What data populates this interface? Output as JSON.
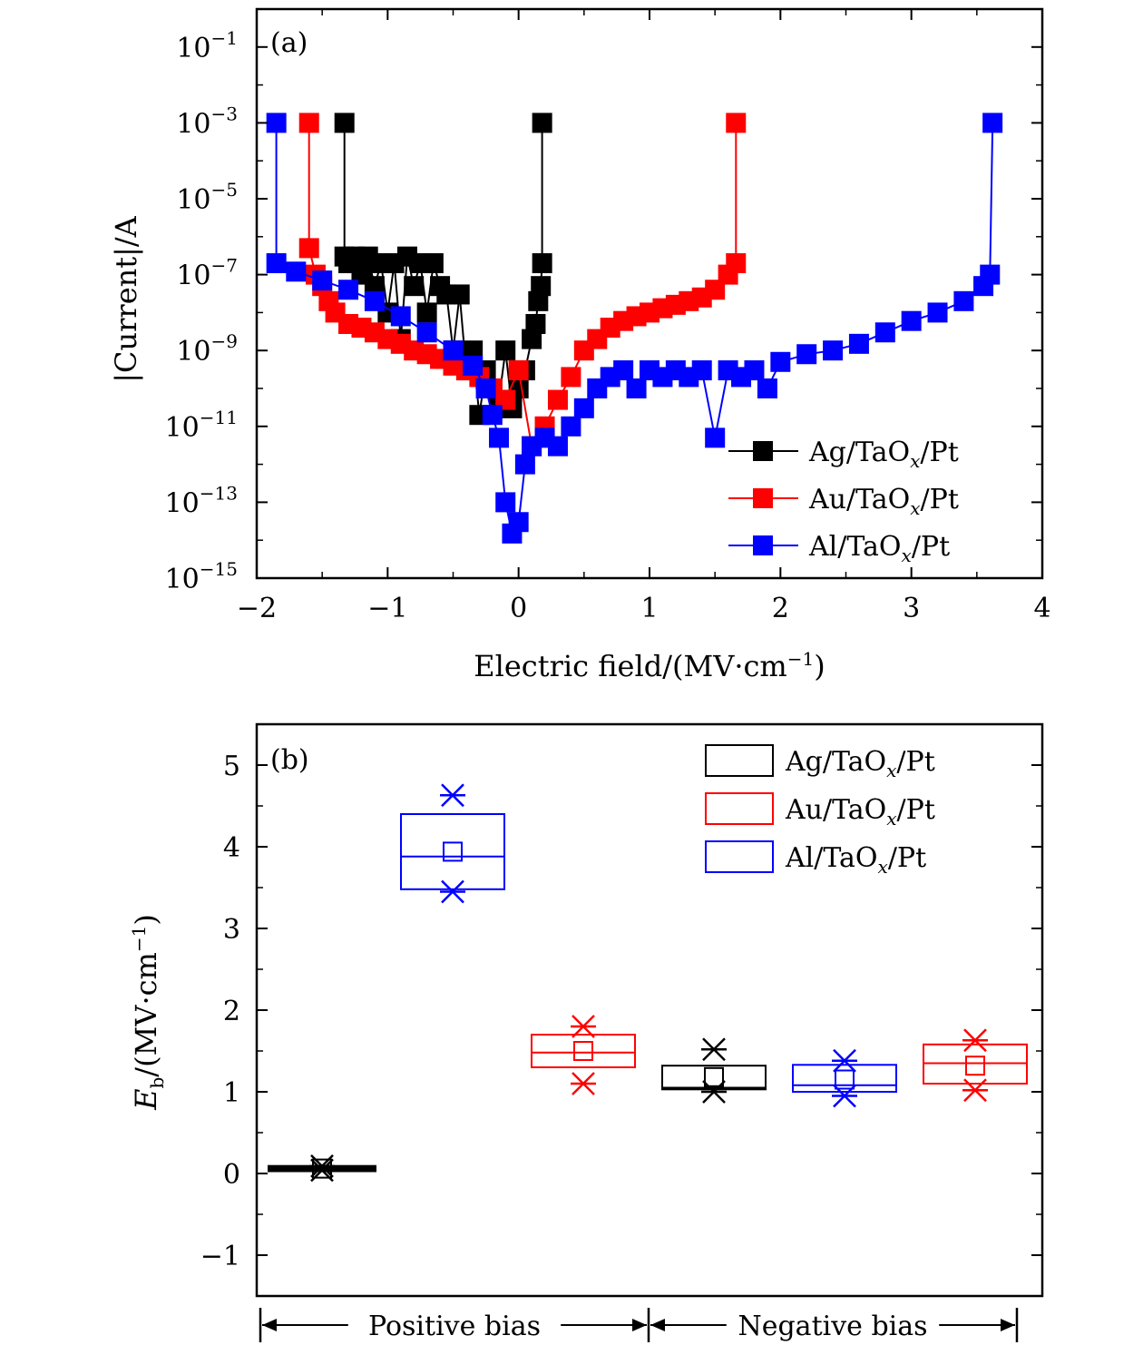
{
  "chart_data": [
    {
      "type": "scatter",
      "panel_label": "(a)",
      "xlabel": "Electric field/(MV·cm⁻¹)",
      "ylabel": "|Current|/A",
      "yscale": "log",
      "xlim": [
        -2,
        4
      ],
      "ylim": [
        1e-15,
        1
      ],
      "x_ticks": [
        "−2",
        "−1",
        "0",
        "1",
        "2",
        "3",
        "4"
      ],
      "y_ticks": [
        {
          "base": "10",
          "exp": "−1"
        },
        {
          "base": "10",
          "exp": "−3"
        },
        {
          "base": "10",
          "exp": "−5"
        },
        {
          "base": "10",
          "exp": "−7"
        },
        {
          "base": "10",
          "exp": "−9"
        },
        {
          "base": "10",
          "exp": "−11"
        },
        {
          "base": "10",
          "exp": "−13"
        },
        {
          "base": "10",
          "exp": "−15"
        }
      ],
      "legend": {
        "placement": "bottom-right"
      },
      "series": [
        {
          "name": "Ag/TaOx/Pt",
          "color": "#000000",
          "points": [
            [
              -1.33,
              0.001
            ],
            [
              -1.33,
              3e-07
            ],
            [
              -1.3,
              2e-07
            ],
            [
              -1.25,
              3e-07
            ],
            [
              -1.2,
              1e-07
            ],
            [
              -1.15,
              3e-07
            ],
            [
              -1.1,
              5e-08
            ],
            [
              -1.05,
              2e-07
            ],
            [
              -1.0,
              1e-08
            ],
            [
              -0.95,
              2e-07
            ],
            [
              -0.9,
              2e-09
            ],
            [
              -0.85,
              3e-07
            ],
            [
              -0.8,
              5e-08
            ],
            [
              -0.75,
              2e-07
            ],
            [
              -0.7,
              1e-08
            ],
            [
              -0.65,
              2e-07
            ],
            [
              -0.6,
              5e-08
            ],
            [
              -0.55,
              3e-08
            ],
            [
              -0.5,
              1e-09
            ],
            [
              -0.45,
              3e-08
            ],
            [
              -0.4,
              3e-10
            ],
            [
              -0.35,
              1e-09
            ],
            [
              -0.3,
              2e-11
            ],
            [
              -0.25,
              3e-10
            ],
            [
              -0.2,
              1e-10
            ],
            [
              -0.15,
              5e-11
            ],
            [
              -0.1,
              1e-09
            ],
            [
              -0.05,
              3e-11
            ],
            [
              0.0,
              1e-10
            ],
            [
              0.05,
              3e-10
            ],
            [
              0.1,
              2e-09
            ],
            [
              0.13,
              5e-09
            ],
            [
              0.15,
              2e-08
            ],
            [
              0.17,
              5e-08
            ],
            [
              0.18,
              2e-07
            ],
            [
              0.18,
              0.001
            ]
          ]
        },
        {
          "name": "Au/TaOx/Pt",
          "color": "#ff0000",
          "points": [
            [
              -1.6,
              0.001
            ],
            [
              -1.6,
              5e-07
            ],
            [
              -1.55,
              1e-07
            ],
            [
              -1.5,
              5e-08
            ],
            [
              -1.45,
              2e-08
            ],
            [
              -1.4,
              1e-08
            ],
            [
              -1.3,
              5e-09
            ],
            [
              -1.2,
              4e-09
            ],
            [
              -1.1,
              3e-09
            ],
            [
              -1.0,
              2e-09
            ],
            [
              -0.9,
              1.5e-09
            ],
            [
              -0.8,
              1e-09
            ],
            [
              -0.7,
              8e-10
            ],
            [
              -0.6,
              6e-10
            ],
            [
              -0.5,
              4e-10
            ],
            [
              -0.4,
              3e-10
            ],
            [
              -0.3,
              2e-10
            ],
            [
              -0.2,
              1e-10
            ],
            [
              -0.1,
              5e-11
            ],
            [
              0.0,
              3e-10
            ],
            [
              0.1,
              3e-12
            ],
            [
              0.2,
              1e-11
            ],
            [
              0.3,
              5e-11
            ],
            [
              0.4,
              2e-10
            ],
            [
              0.5,
              1e-09
            ],
            [
              0.6,
              2e-09
            ],
            [
              0.7,
              4e-09
            ],
            [
              0.8,
              6e-09
            ],
            [
              0.9,
              8e-09
            ],
            [
              1.0,
              1e-08
            ],
            [
              1.1,
              1.3e-08
            ],
            [
              1.2,
              1.6e-08
            ],
            [
              1.3,
              2e-08
            ],
            [
              1.4,
              2.5e-08
            ],
            [
              1.5,
              4e-08
            ],
            [
              1.6,
              1e-07
            ],
            [
              1.66,
              2e-07
            ],
            [
              1.66,
              0.001
            ]
          ]
        },
        {
          "name": "Al/TaOx/Pt",
          "color": "#0000ff",
          "points": [
            [
              -1.85,
              0.001
            ],
            [
              -1.85,
              2e-07
            ],
            [
              -1.7,
              1.2e-07
            ],
            [
              -1.5,
              7e-08
            ],
            [
              -1.3,
              4e-08
            ],
            [
              -1.1,
              2e-08
            ],
            [
              -0.9,
              8e-09
            ],
            [
              -0.7,
              3e-09
            ],
            [
              -0.5,
              1e-09
            ],
            [
              -0.35,
              4e-10
            ],
            [
              -0.25,
              1e-10
            ],
            [
              -0.2,
              2e-11
            ],
            [
              -0.15,
              5e-12
            ],
            [
              -0.1,
              1e-13
            ],
            [
              -0.05,
              1.5e-14
            ],
            [
              0.0,
              3e-14
            ],
            [
              0.05,
              1e-12
            ],
            [
              0.1,
              3e-12
            ],
            [
              0.2,
              5e-12
            ],
            [
              0.3,
              3e-12
            ],
            [
              0.4,
              1e-11
            ],
            [
              0.5,
              3e-11
            ],
            [
              0.6,
              1e-10
            ],
            [
              0.7,
              2e-10
            ],
            [
              0.8,
              3e-10
            ],
            [
              0.9,
              1e-10
            ],
            [
              1.0,
              3e-10
            ],
            [
              1.1,
              2e-10
            ],
            [
              1.2,
              3e-10
            ],
            [
              1.3,
              2e-10
            ],
            [
              1.4,
              3e-10
            ],
            [
              1.5,
              5e-12
            ],
            [
              1.6,
              3e-10
            ],
            [
              1.7,
              2e-10
            ],
            [
              1.8,
              3e-10
            ],
            [
              1.9,
              1e-10
            ],
            [
              2.0,
              5e-10
            ],
            [
              2.2,
              8e-10
            ],
            [
              2.4,
              1e-09
            ],
            [
              2.6,
              1.5e-09
            ],
            [
              2.8,
              3e-09
            ],
            [
              3.0,
              6e-09
            ],
            [
              3.2,
              1e-08
            ],
            [
              3.4,
              2e-08
            ],
            [
              3.55,
              5e-08
            ],
            [
              3.6,
              1e-07
            ],
            [
              3.62,
              0.001
            ]
          ]
        }
      ]
    },
    {
      "type": "box",
      "panel_label": "(b)",
      "ylabel": "E_b/(MV·cm⁻¹)",
      "ylim": [
        -1.5,
        5.5
      ],
      "y_ticks": [
        "−1",
        "0",
        "1",
        "2",
        "3",
        "4",
        "5"
      ],
      "legend": {
        "placement": "top-right"
      },
      "groups": [
        {
          "label": "Positive bias",
          "boxes": [
            "Ag/TaOx/Pt",
            "Al/TaOx/Pt",
            "Au/TaOx/Pt"
          ]
        },
        {
          "label": "Negative bias",
          "boxes": [
            "Ag/TaOx/Pt",
            "Al/TaOx/Pt",
            "Au/TaOx/Pt"
          ]
        }
      ],
      "series": [
        {
          "name": "Ag/TaOx/Pt",
          "color": "#000000"
        },
        {
          "name": "Au/TaOx/Pt",
          "color": "#ff0000"
        },
        {
          "name": "Al/TaOx/Pt",
          "color": "#0000ff"
        }
      ],
      "boxes": [
        {
          "series": "Ag/TaOx/Pt",
          "bias": "positive",
          "q1": 0.05,
          "median": 0.06,
          "q3": 0.07,
          "mean": 0.06,
          "min": 0.04,
          "max": 0.09
        },
        {
          "series": "Al/TaOx/Pt",
          "bias": "positive",
          "q1": 3.48,
          "median": 3.88,
          "q3": 4.4,
          "mean": 3.94,
          "min": 3.45,
          "max": 4.63
        },
        {
          "series": "Au/TaOx/Pt",
          "bias": "positive",
          "q1": 1.3,
          "median": 1.48,
          "q3": 1.7,
          "mean": 1.5,
          "min": 1.1,
          "max": 1.8
        },
        {
          "series": "Ag/TaOx/Pt",
          "bias": "negative",
          "q1": 1.03,
          "median": 1.05,
          "q3": 1.32,
          "mean": 1.18,
          "min": 1.0,
          "max": 1.52
        },
        {
          "series": "Al/TaOx/Pt",
          "bias": "negative",
          "q1": 1.0,
          "median": 1.08,
          "q3": 1.33,
          "mean": 1.15,
          "min": 0.95,
          "max": 1.38
        },
        {
          "series": "Au/TaOx/Pt",
          "bias": "negative",
          "q1": 1.1,
          "median": 1.35,
          "q3": 1.58,
          "mean": 1.32,
          "min": 1.02,
          "max": 1.63
        }
      ]
    }
  ]
}
